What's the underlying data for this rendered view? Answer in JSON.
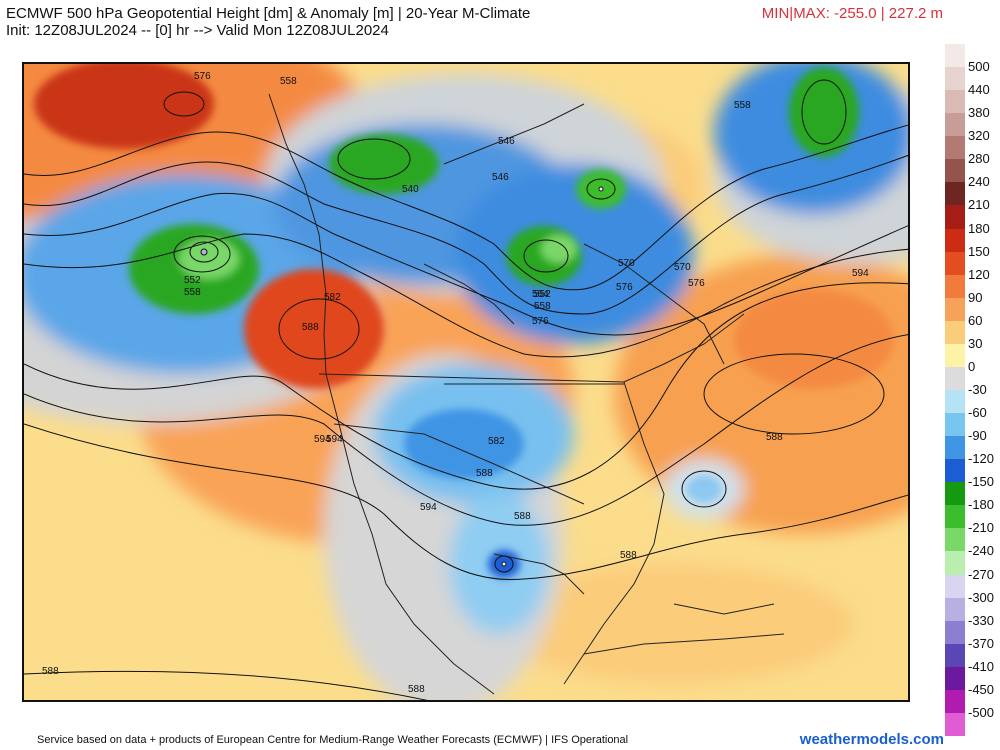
{
  "header": {
    "title_line1": "ECMWF 500 hPa Geopotential Height [dm] & Anomaly [m] | 20-Year M-Climate",
    "title_line2": "Init: 12Z08JUL2024 -- [0] hr --> Valid Mon 12Z08JUL2024",
    "minmax": "MIN|MAX: -255.0 | 227.2 m"
  },
  "colorbar": {
    "labels": [
      "500",
      "440",
      "380",
      "320",
      "280",
      "240",
      "210",
      "180",
      "150",
      "120",
      "90",
      "60",
      "30",
      "0",
      "-30",
      "-60",
      "-90",
      "-120",
      "-150",
      "-180",
      "-210",
      "-240",
      "-270",
      "-300",
      "-330",
      "-370",
      "-410",
      "-450",
      "-500"
    ],
    "colors": [
      "#f3e9e7",
      "#e7d3d0",
      "#d9bab5",
      "#c99d97",
      "#b27a72",
      "#94534b",
      "#6e2622",
      "#a51d14",
      "#cc2b14",
      "#e24e1f",
      "#f07b3a",
      "#f6a25a",
      "#fbcc7a",
      "#fdf3a6",
      "#dcdcdc",
      "#b5e3f5",
      "#78c6ef",
      "#3f94e4",
      "#1d5dd3",
      "#15990f",
      "#3cbd2e",
      "#79d868",
      "#b8efae",
      "#d9d5f0",
      "#b8b0e3",
      "#8c7fd1",
      "#5a46b5",
      "#6b1aa0",
      "#b11bb0",
      "#e05cd3"
    ]
  },
  "map": {
    "contour_labels": [
      "576",
      "558",
      "558",
      "546",
      "540",
      "546",
      "552",
      "558",
      "564",
      "576",
      "582",
      "588",
      "594",
      "594",
      "594",
      "588",
      "588",
      "588",
      "570",
      "576",
      "582",
      "588",
      "570",
      "576",
      "552",
      "558",
      "588",
      "594",
      "588"
    ]
  },
  "footer": {
    "credit": "Service based on data + products of European Centre for Medium-Range Weather Forecasts (ECMWF) | IFS Operational",
    "site": "weathermodels.com"
  }
}
